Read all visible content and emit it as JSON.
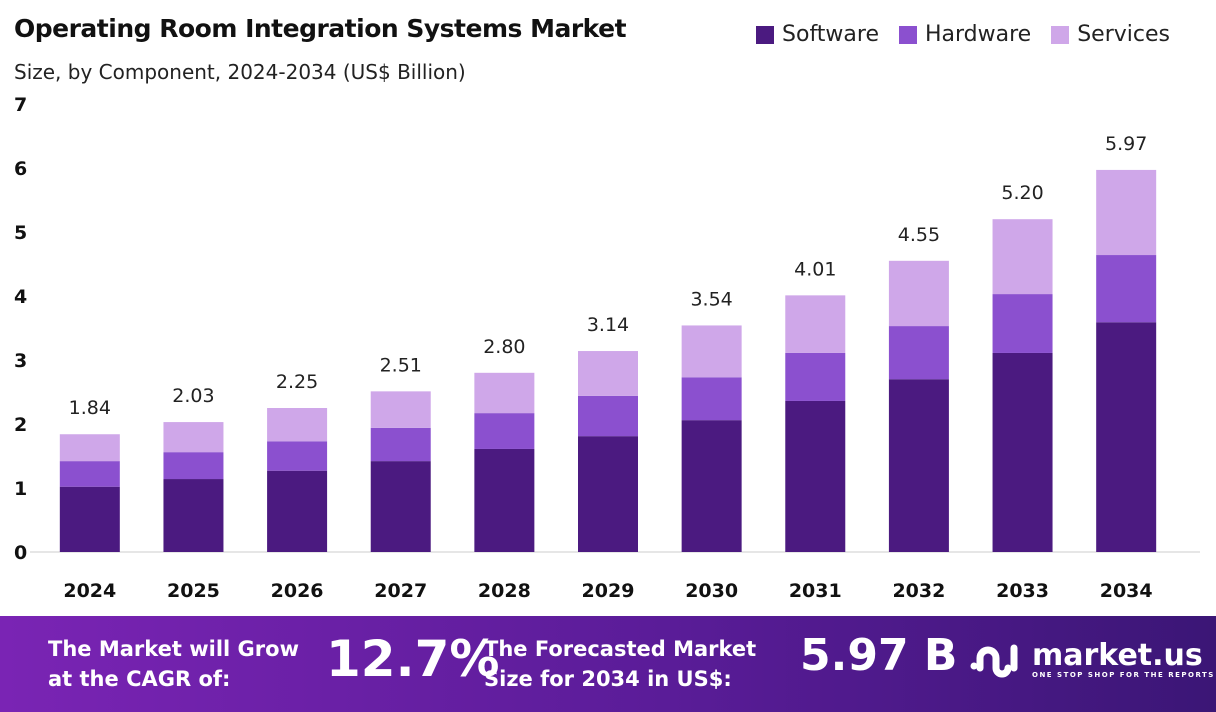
{
  "chart_data": {
    "type": "bar",
    "stacked": true,
    "title": "Operating Room Integration Systems Market",
    "subtitle": "Size, by Component, 2024-2034 (US$ Billion)",
    "categories": [
      "2024",
      "2025",
      "2026",
      "2027",
      "2028",
      "2029",
      "2030",
      "2031",
      "2032",
      "2033",
      "2034"
    ],
    "series": [
      {
        "name": "Software",
        "color": "#4b1a80",
        "values": [
          1.02,
          1.14,
          1.27,
          1.42,
          1.61,
          1.81,
          2.06,
          2.36,
          2.7,
          3.11,
          3.59
        ]
      },
      {
        "name": "Hardware",
        "color": "#8b50cf",
        "values": [
          0.4,
          0.42,
          0.46,
          0.52,
          0.56,
          0.63,
          0.67,
          0.75,
          0.83,
          0.92,
          1.05
        ]
      },
      {
        "name": "Services",
        "color": "#cfa7e9",
        "values": [
          0.42,
          0.47,
          0.52,
          0.57,
          0.63,
          0.7,
          0.81,
          0.9,
          1.02,
          1.17,
          1.33
        ]
      }
    ],
    "totals": [
      "1.84",
      "2.03",
      "2.25",
      "2.51",
      "2.80",
      "3.14",
      "3.54",
      "4.01",
      "4.55",
      "5.20",
      "5.97"
    ],
    "ylim": [
      0,
      7
    ],
    "yticks": [
      "0",
      "1",
      "2",
      "3",
      "4",
      "5",
      "6",
      "7"
    ],
    "grid": false,
    "legend": "top-right"
  },
  "footer": {
    "cagr_text_1": "The Market will Grow",
    "cagr_text_2": "at the CAGR of:",
    "cagr_value": "12.7%",
    "forecast_text_1": "The Forecasted Market",
    "forecast_text_2": "Size for 2034 in US$:",
    "forecast_value": "5.97 B",
    "brand": "market.us",
    "tagline": "ONE STOP SHOP FOR THE REPORTS"
  }
}
